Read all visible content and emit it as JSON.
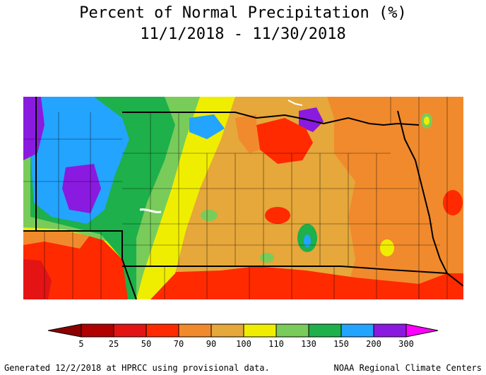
{
  "title": {
    "line1": "Percent of Normal Precipitation (%)",
    "line2": "11/1/2018 - 11/30/2018"
  },
  "legend": {
    "labels": [
      "5",
      "25",
      "50",
      "70",
      "90",
      "100",
      "110",
      "130",
      "150",
      "200",
      "300"
    ],
    "colors": [
      "#b00000",
      "#e41414",
      "#ff2a00",
      "#f18a2c",
      "#e6a73b",
      "#f0ee00",
      "#79cc5a",
      "#1eb04a",
      "#23a4ff",
      "#8a1ae0",
      "#b40fe6"
    ],
    "low_arrow_color": "#8b0000",
    "high_arrow_color": "#ff00ff"
  },
  "footer": {
    "left": "Generated 12/2/2018 at HPRCC using provisional data.",
    "right": "NOAA Regional Climate Centers"
  }
}
